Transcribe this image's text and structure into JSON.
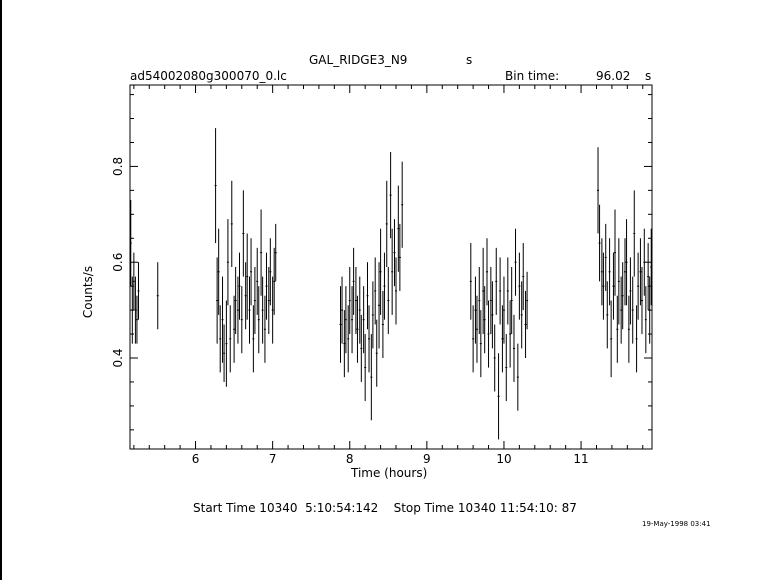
{
  "header": {
    "object_name": "GAL_RIDGE3_N9",
    "object_unit": "s",
    "file_name": "ad54002080g300070_0.lc",
    "bin_time_label": "Bin time:",
    "bin_time_value": "96.02",
    "bin_time_unit": "s"
  },
  "footer": {
    "start_stop": "Start Time 10340  5:10:54:142    Stop Time 10340 11:54:10: 87",
    "plot_date": "19-May-1998 03:41"
  },
  "chart_data": {
    "type": "scatter",
    "title": "",
    "xlabel": "Time (hours)",
    "ylabel": "Counts/s",
    "xlim": [
      5.15,
      11.92
    ],
    "ylim": [
      0.21,
      0.97
    ],
    "xticks": [
      6,
      7,
      8,
      9,
      10,
      11
    ],
    "yticks": [
      0.4,
      0.6,
      0.8
    ],
    "series": [
      {
        "error_bars": true,
        "x": [
          5.16,
          5.18,
          5.2,
          5.22,
          5.24,
          5.26,
          5.51,
          6.26,
          6.28,
          6.3,
          6.32,
          6.35,
          6.37,
          6.4,
          6.42,
          6.45,
          6.47,
          6.5,
          6.52,
          6.55,
          6.57,
          6.6,
          6.62,
          6.65,
          6.67,
          6.7,
          6.72,
          6.75,
          6.77,
          6.8,
          6.82,
          6.85,
          6.87,
          6.9,
          6.92,
          6.95,
          6.97,
          7.0,
          7.02,
          7.04,
          7.88,
          7.9,
          7.93,
          7.95,
          7.98,
          8.0,
          8.03,
          8.05,
          8.08,
          8.1,
          8.13,
          8.15,
          8.18,
          8.2,
          8.23,
          8.25,
          8.28,
          8.3,
          8.33,
          8.35,
          8.38,
          8.4,
          8.43,
          8.45,
          8.48,
          8.5,
          8.53,
          8.55,
          8.58,
          8.6,
          8.63,
          8.65,
          8.68,
          9.57,
          9.6,
          9.63,
          9.65,
          9.68,
          9.7,
          9.73,
          9.75,
          9.78,
          9.8,
          9.83,
          9.85,
          9.88,
          9.9,
          9.93,
          9.95,
          9.98,
          10.0,
          10.03,
          10.05,
          10.08,
          10.1,
          10.13,
          10.15,
          10.18,
          10.2,
          10.23,
          10.25,
          10.28,
          10.3,
          11.22,
          11.24,
          11.27,
          11.29,
          11.32,
          11.34,
          11.37,
          11.39,
          11.42,
          11.44,
          11.47,
          11.49,
          11.52,
          11.54,
          11.57,
          11.59,
          11.62,
          11.64,
          11.67,
          11.69,
          11.72,
          11.74,
          11.77,
          11.79,
          11.82,
          11.84,
          11.87,
          11.89,
          11.91
        ],
        "y": [
          0.64,
          0.5,
          0.56,
          0.5,
          0.48,
          0.54,
          0.53,
          0.76,
          0.52,
          0.58,
          0.44,
          0.48,
          0.41,
          0.43,
          0.6,
          0.44,
          0.68,
          0.46,
          0.52,
          0.5,
          0.55,
          0.48,
          0.66,
          0.53,
          0.57,
          0.5,
          0.58,
          0.44,
          0.52,
          0.56,
          0.48,
          0.62,
          0.5,
          0.46,
          0.55,
          0.52,
          0.58,
          0.5,
          0.56,
          0.62,
          0.47,
          0.5,
          0.43,
          0.48,
          0.44,
          0.52,
          0.48,
          0.56,
          0.52,
          0.46,
          0.5,
          0.42,
          0.48,
          0.38,
          0.53,
          0.44,
          0.36,
          0.49,
          0.54,
          0.41,
          0.51,
          0.58,
          0.47,
          0.55,
          0.68,
          0.52,
          0.74,
          0.58,
          0.62,
          0.54,
          0.67,
          0.61,
          0.72,
          0.56,
          0.44,
          0.5,
          0.46,
          0.52,
          0.43,
          0.54,
          0.48,
          0.58,
          0.45,
          0.52,
          0.49,
          0.4,
          0.56,
          0.32,
          0.54,
          0.44,
          0.5,
          0.38,
          0.54,
          0.45,
          0.52,
          0.42,
          0.6,
          0.36,
          0.55,
          0.49,
          0.57,
          0.47,
          0.52,
          0.75,
          0.64,
          0.58,
          0.55,
          0.61,
          0.49,
          0.58,
          0.44,
          0.55,
          0.62,
          0.46,
          0.56,
          0.5,
          0.53,
          0.58,
          0.6,
          0.46,
          0.54,
          0.5,
          0.66,
          0.44,
          0.55,
          0.58,
          0.52,
          0.6,
          0.48,
          0.57,
          0.5,
          0.59
        ],
        "y_err": [
          0.09,
          0.07,
          0.06,
          0.07,
          0.05,
          0.06,
          0.07,
          0.12,
          0.09,
          0.09,
          0.07,
          0.09,
          0.06,
          0.09,
          0.09,
          0.07,
          0.09,
          0.07,
          0.07,
          0.07,
          0.07,
          0.07,
          0.09,
          0.07,
          0.09,
          0.07,
          0.07,
          0.07,
          0.07,
          0.07,
          0.07,
          0.09,
          0.07,
          0.07,
          0.07,
          0.07,
          0.07,
          0.07,
          0.07,
          0.06,
          0.08,
          0.07,
          0.07,
          0.07,
          0.07,
          0.07,
          0.07,
          0.07,
          0.07,
          0.07,
          0.07,
          0.07,
          0.07,
          0.07,
          0.07,
          0.07,
          0.09,
          0.07,
          0.07,
          0.07,
          0.09,
          0.09,
          0.07,
          0.07,
          0.09,
          0.07,
          0.09,
          0.09,
          0.07,
          0.07,
          0.09,
          0.07,
          0.09,
          0.08,
          0.07,
          0.07,
          0.07,
          0.07,
          0.07,
          0.09,
          0.07,
          0.07,
          0.07,
          0.07,
          0.07,
          0.07,
          0.07,
          0.09,
          0.07,
          0.07,
          0.07,
          0.07,
          0.07,
          0.07,
          0.07,
          0.07,
          0.07,
          0.07,
          0.07,
          0.07,
          0.07,
          0.07,
          0.06,
          0.09,
          0.08,
          0.07,
          0.07,
          0.07,
          0.07,
          0.07,
          0.08,
          0.07,
          0.09,
          0.07,
          0.09,
          0.07,
          0.07,
          0.07,
          0.09,
          0.07,
          0.07,
          0.07,
          0.09,
          0.07,
          0.07,
          0.07,
          0.07,
          0.07,
          0.07,
          0.07,
          0.07,
          0.08
        ],
        "x_err": 0.013
      }
    ]
  }
}
